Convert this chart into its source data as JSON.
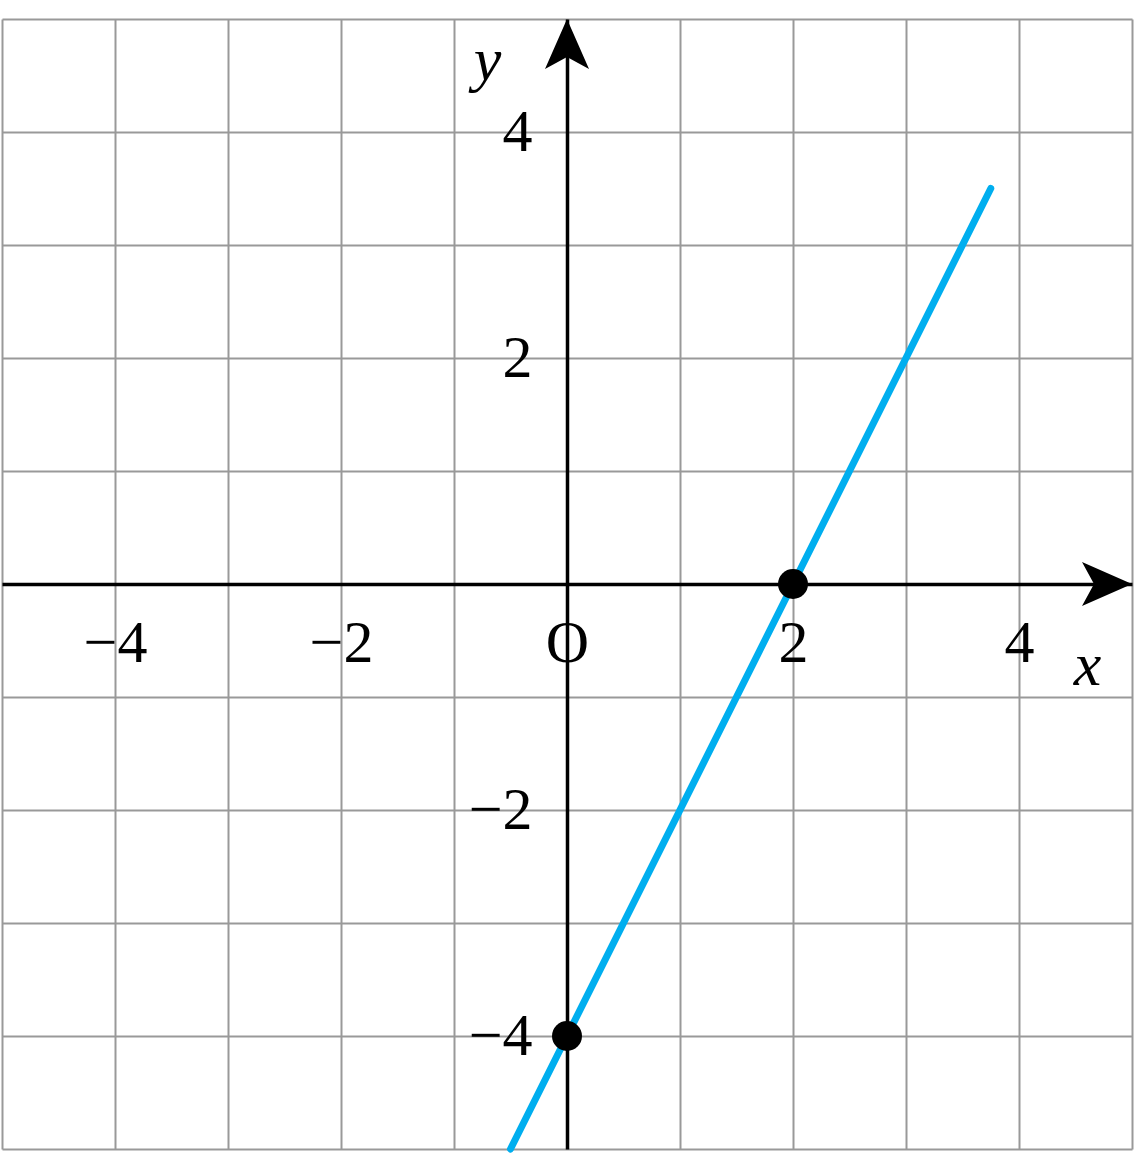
{
  "chart_data": {
    "type": "line",
    "xlabel": "x",
    "ylabel": "y",
    "xlim": [
      -5,
      5
    ],
    "ylim": [
      -5,
      5
    ],
    "xticks": [
      {
        "value": -5,
        "label": null
      },
      -4,
      {
        "value": -3,
        "label": null
      },
      -2,
      {
        "value": -1,
        "label": null
      },
      {
        "value": 0,
        "label": "O"
      },
      {
        "value": 1,
        "label": null
      },
      2,
      {
        "value": 3,
        "label": null
      },
      4,
      {
        "value": 5,
        "label": null
      }
    ],
    "yticks": [
      {
        "value": -5,
        "label": null
      },
      -4,
      {
        "value": -3,
        "label": null
      },
      -2,
      {
        "value": -1,
        "label": null
      },
      {
        "value": 0,
        "label": null
      },
      {
        "value": 1,
        "label": null
      },
      2,
      {
        "value": 3,
        "label": null
      },
      4,
      {
        "value": 5,
        "label": null
      }
    ],
    "grid": true,
    "series": [
      {
        "color": "#00aeef",
        "x": [
          -0.5,
          3.75
        ],
        "values": [
          -5,
          3.5
        ],
        "marker": "none"
      },
      {
        "type": "scatter",
        "color": "#000000",
        "x": [
          0,
          2
        ],
        "values": [
          -4,
          0
        ],
        "marker": "circle"
      }
    ]
  }
}
